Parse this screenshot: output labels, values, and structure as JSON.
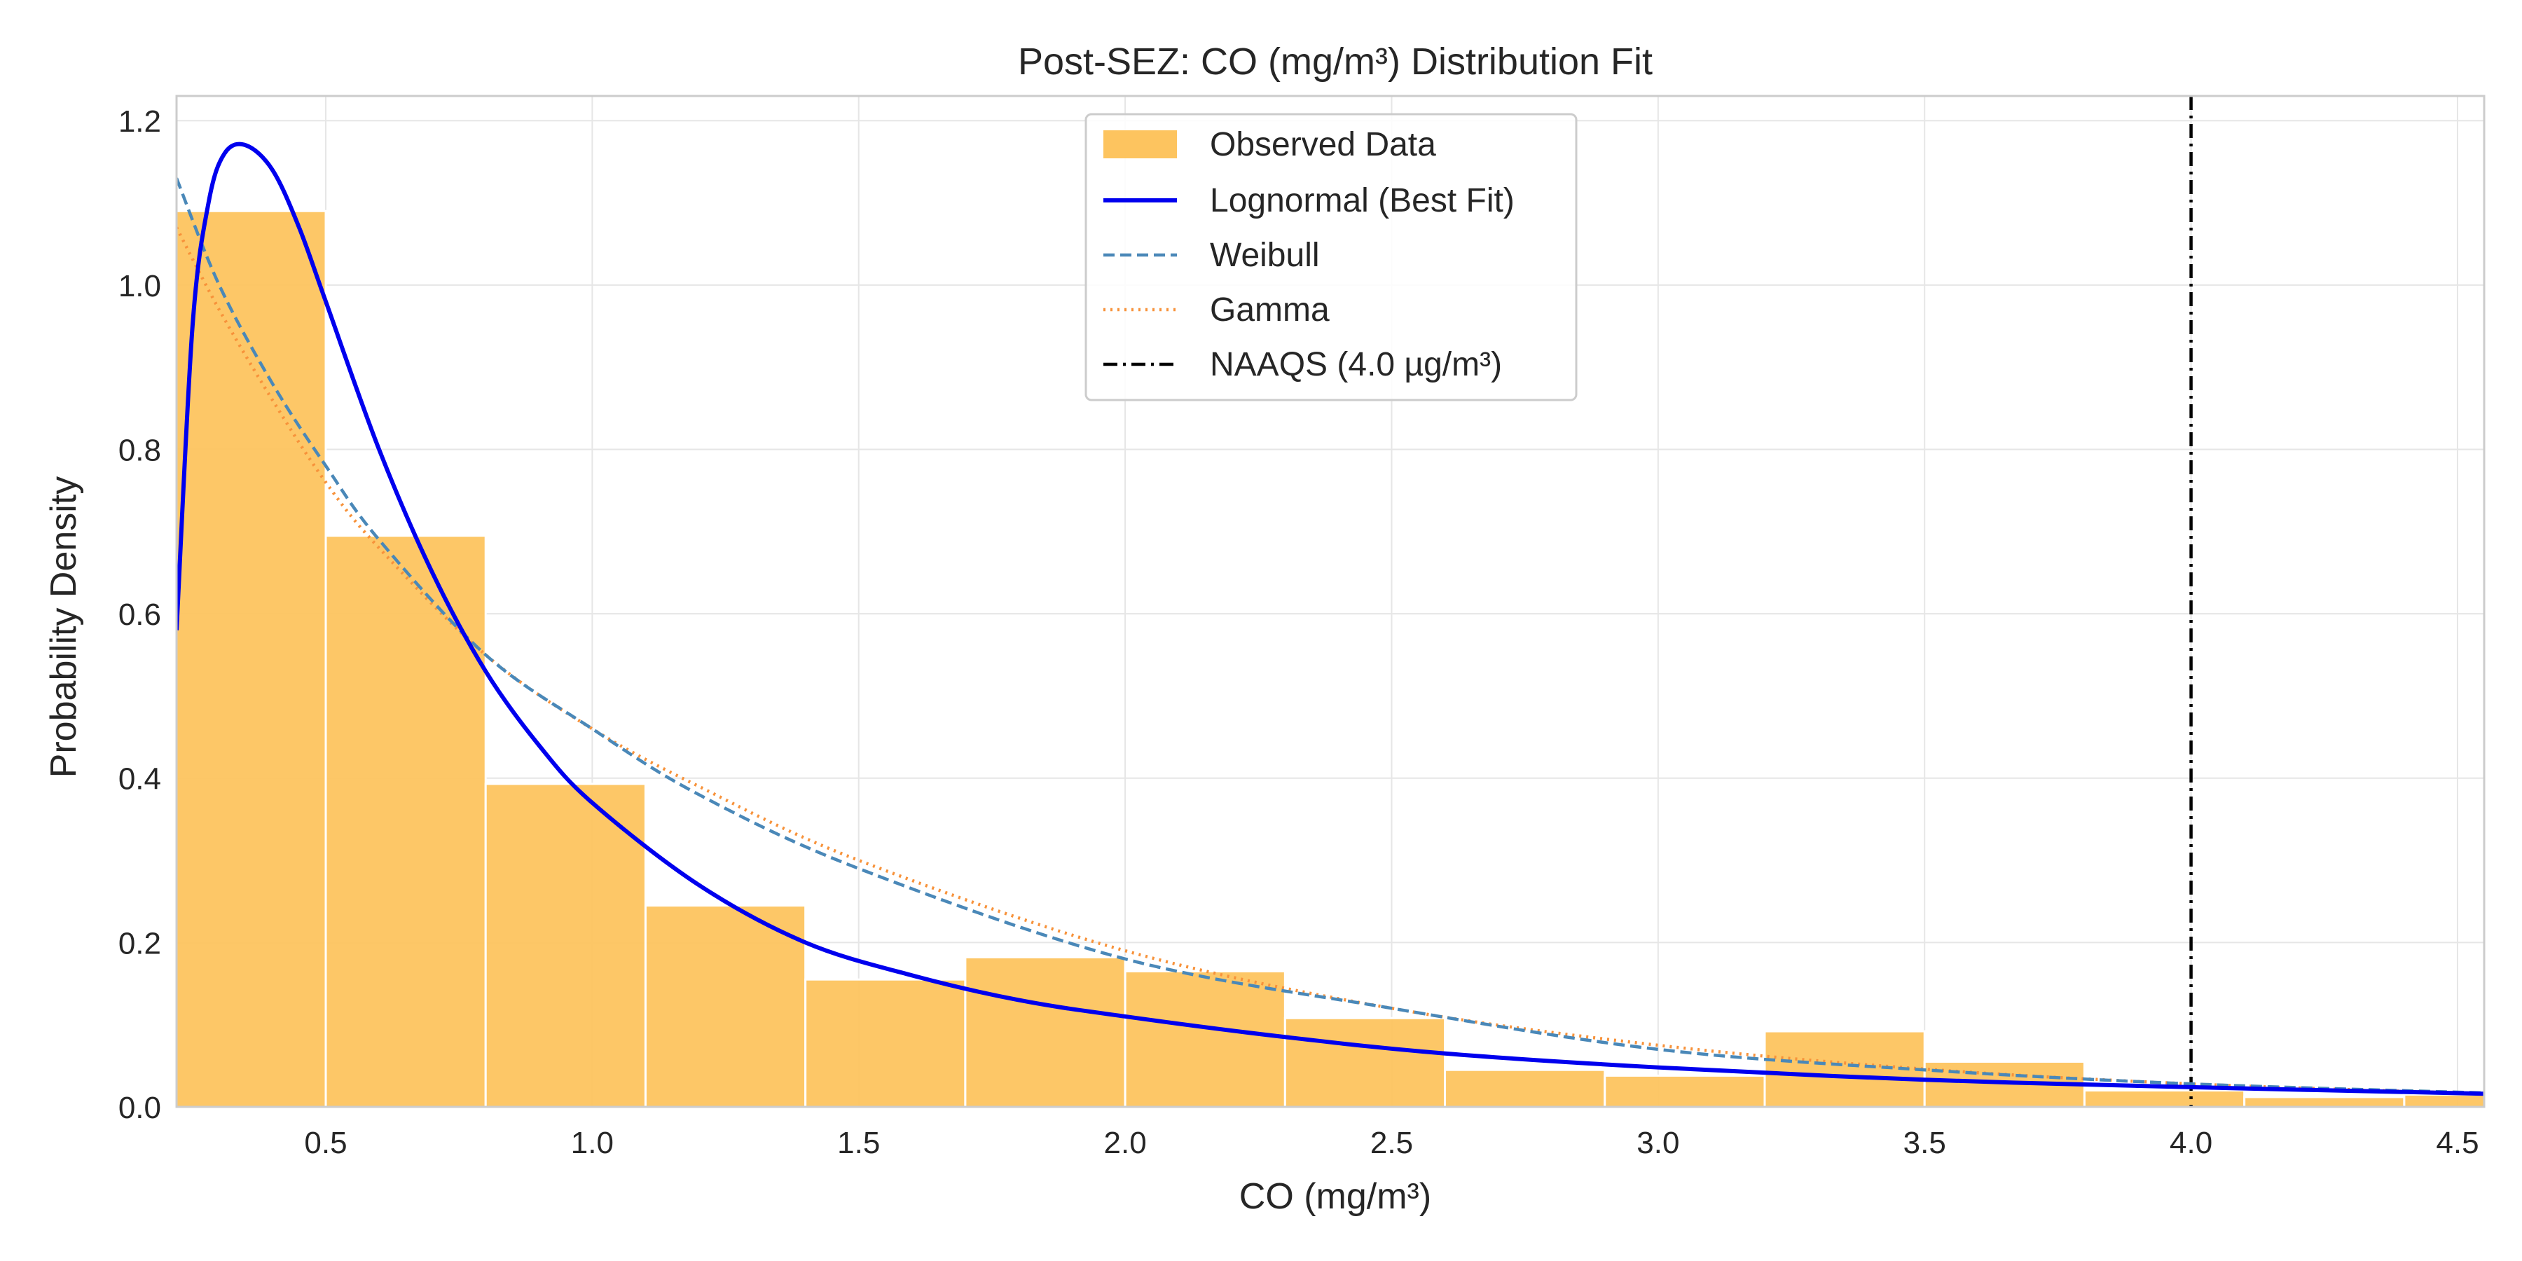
{
  "chart_data": {
    "type": "histogram",
    "title": "Post-SEZ: CO (mg/m³) Distribution Fit",
    "xlabel": "CO (mg/m³)",
    "ylabel": "Probability Density",
    "xlim": [
      0.22,
      4.55
    ],
    "ylim": [
      0.0,
      1.23
    ],
    "xticks": [
      0.5,
      1.0,
      1.5,
      2.0,
      2.5,
      3.0,
      3.5,
      4.0,
      4.5
    ],
    "xtick_labels": [
      "0.5",
      "1.0",
      "1.5",
      "2.0",
      "2.5",
      "3.0",
      "3.5",
      "4.0",
      "4.5"
    ],
    "yticks": [
      0.0,
      0.2,
      0.4,
      0.6,
      0.8,
      1.0,
      1.2
    ],
    "ytick_labels": [
      "0.0",
      "0.2",
      "0.4",
      "0.6",
      "0.8",
      "1.0",
      "1.2"
    ],
    "grid": true,
    "legend_position": "top-center",
    "histogram": {
      "name": "Observed Data",
      "color": "#fdc45f",
      "bin_edges": [
        0.2,
        0.5,
        0.8,
        1.1,
        1.4,
        1.7,
        2.0,
        2.3,
        2.6,
        2.9,
        3.2,
        3.5,
        3.8,
        4.1,
        4.4,
        4.7
      ],
      "densities": [
        1.09,
        0.695,
        0.393,
        0.245,
        0.155,
        0.182,
        0.165,
        0.108,
        0.045,
        0.038,
        0.092,
        0.055,
        0.02,
        0.012,
        0.015
      ]
    },
    "series": [
      {
        "name": "Lognormal (Best Fit)",
        "style": "solid",
        "color": "#0000ee",
        "x": [
          0.22,
          0.25,
          0.28,
          0.31,
          0.35,
          0.4,
          0.45,
          0.5,
          0.6,
          0.7,
          0.8,
          0.9,
          1.0,
          1.2,
          1.4,
          1.6,
          1.8,
          2.0,
          2.3,
          2.6,
          3.0,
          3.5,
          4.0,
          4.55
        ],
        "y": [
          0.58,
          0.95,
          1.1,
          1.16,
          1.17,
          1.14,
          1.07,
          0.98,
          0.8,
          0.65,
          0.53,
          0.44,
          0.37,
          0.27,
          0.2,
          0.16,
          0.13,
          0.11,
          0.085,
          0.065,
          0.048,
          0.033,
          0.024,
          0.016
        ]
      },
      {
        "name": "Weibull",
        "style": "dashed",
        "color": "#4a88b8",
        "x": [
          0.22,
          0.3,
          0.4,
          0.5,
          0.6,
          0.8,
          1.0,
          1.2,
          1.5,
          2.0,
          2.5,
          3.0,
          3.5,
          4.0,
          4.55
        ],
        "y": [
          1.13,
          1.0,
          0.88,
          0.78,
          0.69,
          0.55,
          0.46,
          0.38,
          0.29,
          0.18,
          0.12,
          0.07,
          0.045,
          0.028,
          0.017
        ]
      },
      {
        "name": "Gamma",
        "style": "dotted",
        "color": "#f7923a",
        "x": [
          0.22,
          0.3,
          0.4,
          0.5,
          0.6,
          0.8,
          1.0,
          1.2,
          1.5,
          2.0,
          2.5,
          3.0,
          3.5,
          4.0,
          4.55
        ],
        "y": [
          1.07,
          0.97,
          0.86,
          0.76,
          0.68,
          0.55,
          0.46,
          0.39,
          0.3,
          0.19,
          0.12,
          0.075,
          0.046,
          0.028,
          0.016
        ]
      }
    ],
    "reference_line": {
      "name": "NAAQS (4.0 µg/m³)",
      "x": 4.0,
      "style": "dashdot",
      "color": "#000000"
    }
  }
}
